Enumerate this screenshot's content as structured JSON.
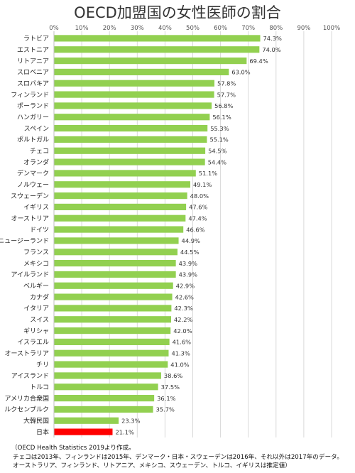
{
  "chart_data": {
    "type": "bar",
    "orientation": "horizontal",
    "title": "OECD加盟国の女性医師の割合",
    "categories": [
      "ラトビア",
      "エストニア",
      "リトアニア",
      "スロベニア",
      "スロバキア",
      "フィンランド",
      "ポーランド",
      "ハンガリー",
      "スペイン",
      "ポルトガル",
      "チェコ",
      "オランダ",
      "デンマーク",
      "ノルウェー",
      "スウェーデン",
      "イギリス",
      "オーストリア",
      "ドイツ",
      "ニュージーランド",
      "フランス",
      "メキシコ",
      "アイルランド",
      "ベルギー",
      "カナダ",
      "イタリア",
      "スイス",
      "ギリシャ",
      "イスラエル",
      "オーストラリア",
      "チリ",
      "アイスランド",
      "トルコ",
      "アメリカ合衆国",
      "ルクセンブルク",
      "大韓民国",
      "日本"
    ],
    "values": [
      74.3,
      74.0,
      69.4,
      63.0,
      57.8,
      57.7,
      56.8,
      56.1,
      55.3,
      55.1,
      54.5,
      54.4,
      51.1,
      49.1,
      48.0,
      47.6,
      47.4,
      46.6,
      44.9,
      44.5,
      43.9,
      43.9,
      42.9,
      42.6,
      42.3,
      42.2,
      42.0,
      41.6,
      41.3,
      41.0,
      38.6,
      37.5,
      36.1,
      35.7,
      23.3,
      21.1
    ],
    "data_labels": [
      "74.3%",
      "74.0%",
      "69.4%",
      "63.0%",
      "57.8%",
      "57.7%",
      "56.8%",
      "56.1%",
      "55.3%",
      "55.1%",
      "54.5%",
      "54.4%",
      "51.1%",
      "49.1%",
      "48.0%",
      "47.6%",
      "47.4%",
      "46.6%",
      "44.9%",
      "44.5%",
      "43.9%",
      "43.9%",
      "42.9%",
      "42.6%",
      "42.3%",
      "42.2%",
      "42.0%",
      "41.6%",
      "41.3%",
      "41.0%",
      "38.6%",
      "37.5%",
      "36.1%",
      "35.7%",
      "23.3%",
      "21.1%"
    ],
    "x_ticks": [
      "0%",
      "10%",
      "20%",
      "30%",
      "40%",
      "50%",
      "60%",
      "70%",
      "80%",
      "90%",
      "100%"
    ],
    "xlim": [
      0,
      100
    ],
    "grid": true,
    "legend": "none",
    "colors": {
      "bar": "#92d050",
      "highlight": "#ff0000",
      "grid": "#d9d9d9"
    },
    "highlight_category": "日本"
  },
  "notes": [
    "（OECD Health Statistics 2019より作成。",
    "チェコは2013年、フィンランドは2015年、デンマーク・日本・スウェーデンは2016年、それ以外は2017年のデータ。",
    "オーストラリア、フィンランド、リトアニア、メキシコ、スウェーデン、トルコ、イギリスは推定値）"
  ]
}
